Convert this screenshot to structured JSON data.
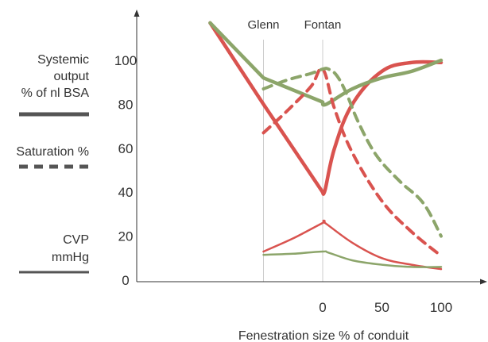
{
  "chart_data": {
    "type": "line",
    "title": "",
    "xlabel": "Fenestration size % of conduit",
    "ylabel": "",
    "x_ticks": [
      0,
      50,
      100
    ],
    "y_ticks": [
      0,
      20,
      40,
      60,
      80,
      100
    ],
    "ylim": [
      0,
      118
    ],
    "markers": [
      {
        "label": "Glenn",
        "x": -50
      },
      {
        "label": "Fontan",
        "x": 0
      }
    ],
    "legend": [
      {
        "lines": [
          "Systemic",
          "output",
          "% of nl BSA"
        ],
        "style": "solid-thick"
      },
      {
        "lines": [
          "Saturation %"
        ],
        "style": "dashed"
      },
      {
        "lines": [
          "CVP",
          "mmHg"
        ],
        "style": "solid-thin"
      }
    ],
    "series": [
      {
        "metric": "systemic",
        "style": "solid-thick",
        "color": "#d9534f",
        "x": [
          -95,
          -50,
          0,
          2,
          10,
          25,
          50,
          75,
          100
        ],
        "y": [
          117,
          80,
          40,
          41,
          60,
          80,
          95,
          99,
          99
        ]
      },
      {
        "metric": "systemic",
        "style": "solid-thick",
        "color": "#8ca56a",
        "x": [
          -95,
          -50,
          0,
          3,
          25,
          50,
          75,
          100
        ],
        "y": [
          117,
          92,
          81,
          80,
          87,
          92,
          95,
          100
        ]
      },
      {
        "metric": "saturation",
        "style": "dashed",
        "color": "#d9534f",
        "x": [
          -50,
          -30,
          -10,
          0,
          10,
          25,
          50,
          75,
          100
        ],
        "y": [
          67,
          77,
          88,
          96,
          78,
          58,
          36,
          22,
          11
        ]
      },
      {
        "metric": "saturation",
        "style": "dashed",
        "color": "#8ca56a",
        "x": [
          -50,
          -30,
          -10,
          0,
          5,
          12,
          20,
          30,
          45,
          65,
          85,
          100
        ],
        "y": [
          87,
          91,
          94,
          96,
          96,
          93,
          85,
          72,
          57,
          45,
          35,
          20
        ]
      },
      {
        "metric": "cvp",
        "style": "solid-thin",
        "color": "#d9534f",
        "x": [
          -50,
          -25,
          0,
          2,
          25,
          50,
          75,
          100
        ],
        "y": [
          13,
          19,
          26,
          26,
          17,
          10,
          7,
          5
        ]
      },
      {
        "metric": "cvp",
        "style": "solid-thin",
        "color": "#8ca56a",
        "x": [
          -50,
          -25,
          0,
          5,
          25,
          50,
          75,
          100
        ],
        "y": [
          11.5,
          12,
          13,
          12.5,
          9,
          7,
          6,
          6
        ]
      }
    ]
  }
}
